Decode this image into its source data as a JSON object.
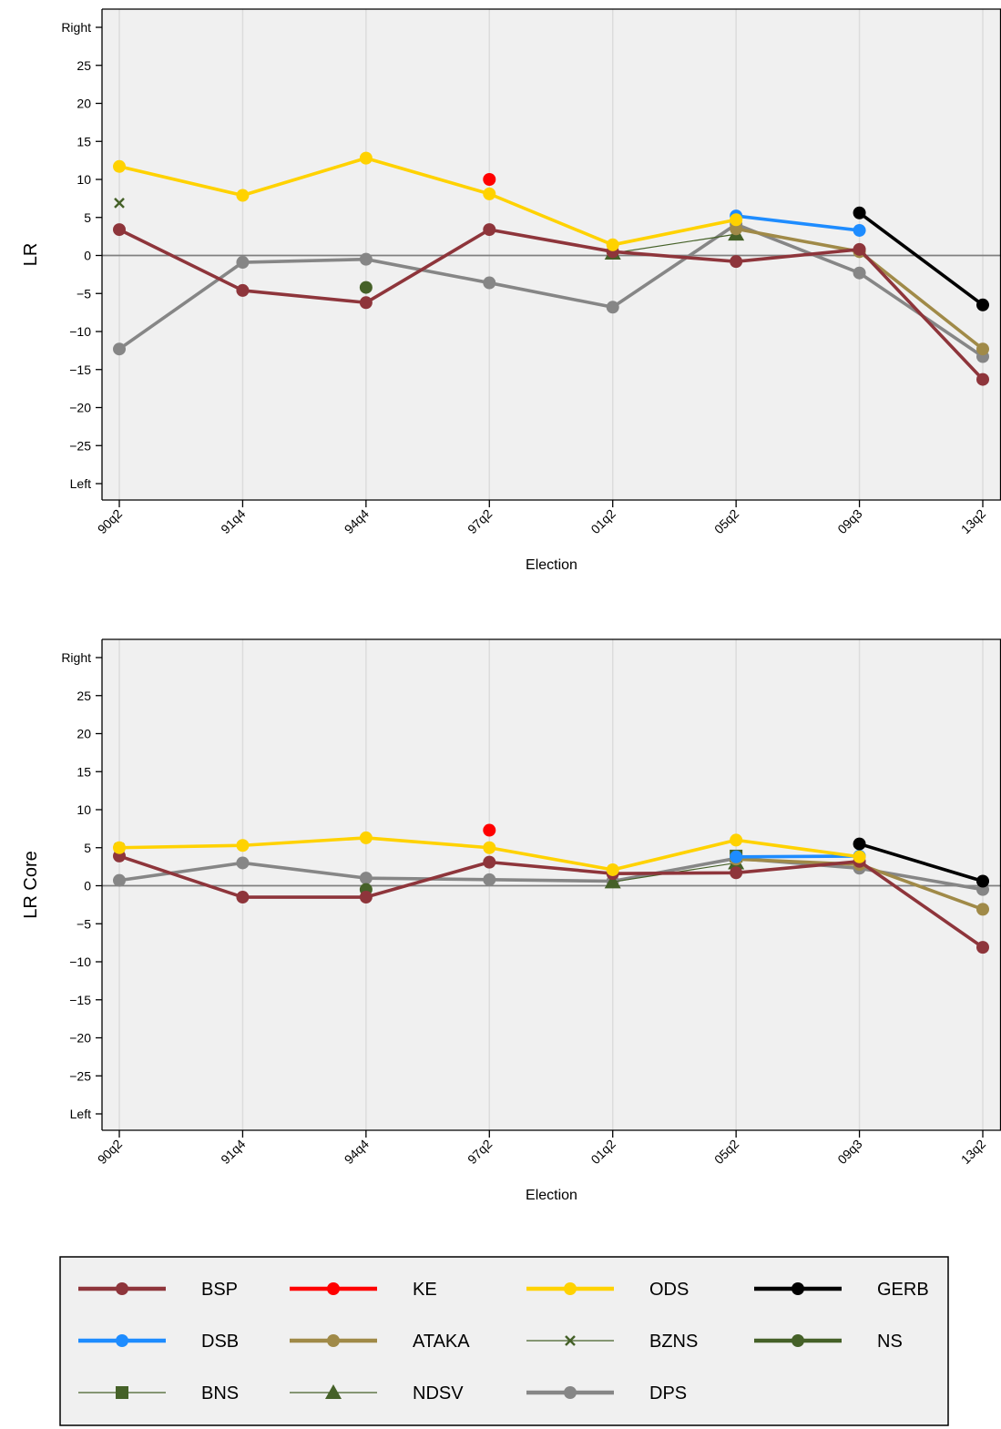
{
  "chart_data": [
    {
      "type": "line",
      "xlabel": "Election",
      "ylabel": "LR",
      "categories": [
        "90q2",
        "91q4",
        "94q4",
        "97q2",
        "01q2",
        "05q2",
        "09q3",
        "13q2"
      ],
      "ylim": [
        -30,
        30
      ],
      "yticks": [
        {
          "value": 30,
          "label": "Right"
        },
        {
          "value": 25,
          "label": "25"
        },
        {
          "value": 20,
          "label": "20"
        },
        {
          "value": 15,
          "label": "15"
        },
        {
          "value": 10,
          "label": "10"
        },
        {
          "value": 5,
          "label": "5"
        },
        {
          "value": 0,
          "label": "0"
        },
        {
          "value": -5,
          "label": "−5"
        },
        {
          "value": -10,
          "label": "−10"
        },
        {
          "value": -15,
          "label": "−15"
        },
        {
          "value": -20,
          "label": "−20"
        },
        {
          "value": -25,
          "label": "−25"
        },
        {
          "value": -30,
          "label": "Left"
        }
      ],
      "grid": true,
      "series": [
        {
          "name": "BSP",
          "values": [
            3.4,
            -4.6,
            -6.2,
            3.4,
            0.5,
            -0.8,
            0.8,
            -16.3
          ]
        },
        {
          "name": "KE",
          "values": [
            null,
            null,
            null,
            10.0,
            null,
            null,
            null,
            null
          ]
        },
        {
          "name": "ODS",
          "values": [
            11.7,
            7.9,
            12.8,
            8.1,
            1.4,
            4.7,
            null,
            null
          ]
        },
        {
          "name": "GERB",
          "values": [
            null,
            null,
            null,
            null,
            null,
            null,
            5.6,
            -6.5
          ]
        },
        {
          "name": "DSB",
          "values": [
            null,
            null,
            null,
            null,
            null,
            5.2,
            3.3,
            null
          ]
        },
        {
          "name": "ATAKA",
          "values": [
            null,
            null,
            null,
            null,
            null,
            3.5,
            0.5,
            -12.3
          ]
        },
        {
          "name": "BZNS",
          "values": [
            6.9,
            null,
            null,
            null,
            null,
            null,
            null,
            null
          ]
        },
        {
          "name": "NS",
          "values": [
            null,
            null,
            -4.2,
            null,
            null,
            null,
            null,
            null
          ]
        },
        {
          "name": "BNS",
          "values": [
            null,
            null,
            null,
            null,
            null,
            null,
            null,
            null
          ]
        },
        {
          "name": "NDSV",
          "values": [
            null,
            null,
            null,
            null,
            0.3,
            2.8,
            null,
            null
          ]
        },
        {
          "name": "DPS",
          "values": [
            -12.3,
            -0.9,
            -0.5,
            -3.6,
            -6.8,
            4.1,
            -2.3,
            -13.3
          ]
        }
      ]
    },
    {
      "type": "line",
      "xlabel": "Election",
      "ylabel": "LR Core",
      "categories": [
        "90q2",
        "91q4",
        "94q4",
        "97q2",
        "01q2",
        "05q2",
        "09q3",
        "13q2"
      ],
      "ylim": [
        -30,
        30
      ],
      "yticks": [
        {
          "value": 30,
          "label": "Right"
        },
        {
          "value": 25,
          "label": "25"
        },
        {
          "value": 20,
          "label": "20"
        },
        {
          "value": 15,
          "label": "15"
        },
        {
          "value": 10,
          "label": "10"
        },
        {
          "value": 5,
          "label": "5"
        },
        {
          "value": 0,
          "label": "0"
        },
        {
          "value": -5,
          "label": "−5"
        },
        {
          "value": -10,
          "label": "−10"
        },
        {
          "value": -15,
          "label": "−15"
        },
        {
          "value": -20,
          "label": "−20"
        },
        {
          "value": -25,
          "label": "−25"
        },
        {
          "value": -30,
          "label": "Left"
        }
      ],
      "grid": true,
      "series": [
        {
          "name": "BSP",
          "values": [
            3.9,
            -1.5,
            -1.5,
            3.1,
            1.6,
            1.7,
            3.2,
            -8.1
          ]
        },
        {
          "name": "KE",
          "values": [
            null,
            null,
            null,
            7.3,
            null,
            null,
            null,
            null
          ]
        },
        {
          "name": "ODS",
          "values": [
            5.0,
            5.3,
            6.3,
            5.0,
            2.1,
            6.0,
            3.8,
            null
          ]
        },
        {
          "name": "GERB",
          "values": [
            null,
            null,
            null,
            null,
            null,
            null,
            5.5,
            0.6
          ]
        },
        {
          "name": "DSB",
          "values": [
            null,
            null,
            null,
            null,
            null,
            3.8,
            3.9,
            null
          ]
        },
        {
          "name": "ATAKA",
          "values": [
            null,
            null,
            null,
            null,
            null,
            3.5,
            2.8,
            -3.1
          ]
        },
        {
          "name": "BZNS",
          "values": [
            5.0,
            null,
            null,
            null,
            null,
            null,
            null,
            null
          ]
        },
        {
          "name": "NS",
          "values": [
            null,
            null,
            -0.5,
            null,
            null,
            null,
            null,
            null
          ]
        },
        {
          "name": "BNS",
          "values": [
            null,
            null,
            null,
            null,
            null,
            3.9,
            null,
            null
          ]
        },
        {
          "name": "NDSV",
          "values": [
            null,
            null,
            null,
            null,
            0.5,
            3.0,
            null,
            null
          ]
        },
        {
          "name": "DPS",
          "values": [
            0.7,
            3.0,
            1.0,
            0.8,
            0.6,
            3.6,
            2.3,
            -0.5
          ]
        }
      ]
    }
  ],
  "legend": {
    "placement": "bottom",
    "items": [
      {
        "name": "BSP",
        "color": "#8e353b",
        "marker": "circle",
        "line": "thick"
      },
      {
        "name": "KE",
        "color": "#ff0000",
        "marker": "circle",
        "line": "thick"
      },
      {
        "name": "ODS",
        "color": "#ffd200",
        "marker": "circle",
        "line": "thick"
      },
      {
        "name": "GERB",
        "color": "#000000",
        "marker": "circle",
        "line": "thick"
      },
      {
        "name": "DSB",
        "color": "#1e8cff",
        "marker": "circle",
        "line": "thick"
      },
      {
        "name": "ATAKA",
        "color": "#a08a48",
        "marker": "circle",
        "line": "thick"
      },
      {
        "name": "BZNS",
        "color": "#456128",
        "marker": "x",
        "line": "thin"
      },
      {
        "name": "NS",
        "color": "#456128",
        "marker": "circle",
        "line": "thick"
      },
      {
        "name": "BNS",
        "color": "#456128",
        "marker": "square",
        "line": "thin"
      },
      {
        "name": "NDSV",
        "color": "#456128",
        "marker": "triangle",
        "line": "thin"
      },
      {
        "name": "DPS",
        "color": "#868686",
        "marker": "circle",
        "line": "thick"
      }
    ]
  },
  "colors": {
    "plot_background": "#f0f0f0",
    "grid": "#dcdcdc",
    "zero_line": "#808080"
  }
}
